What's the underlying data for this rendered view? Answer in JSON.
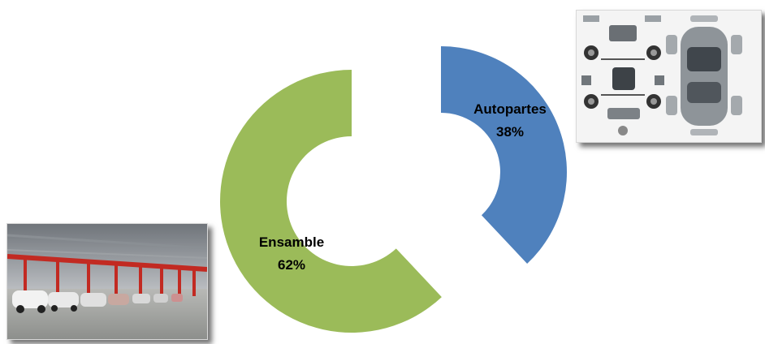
{
  "chart_data": {
    "type": "pie",
    "style": "exploded-donut",
    "categories": [
      "Autopartes",
      "Ensamble"
    ],
    "values": [
      38,
      62
    ],
    "labels": [
      {
        "name": "Autopartes",
        "percent": "38%"
      },
      {
        "name": "Ensamble",
        "percent": "62%"
      }
    ],
    "colors": [
      "#4f81bd",
      "#9bbb59"
    ],
    "legend": "none"
  },
  "images": {
    "parts_photo": "auto-parts-exploded-view",
    "assembly_photo": "car-assembly-line"
  }
}
